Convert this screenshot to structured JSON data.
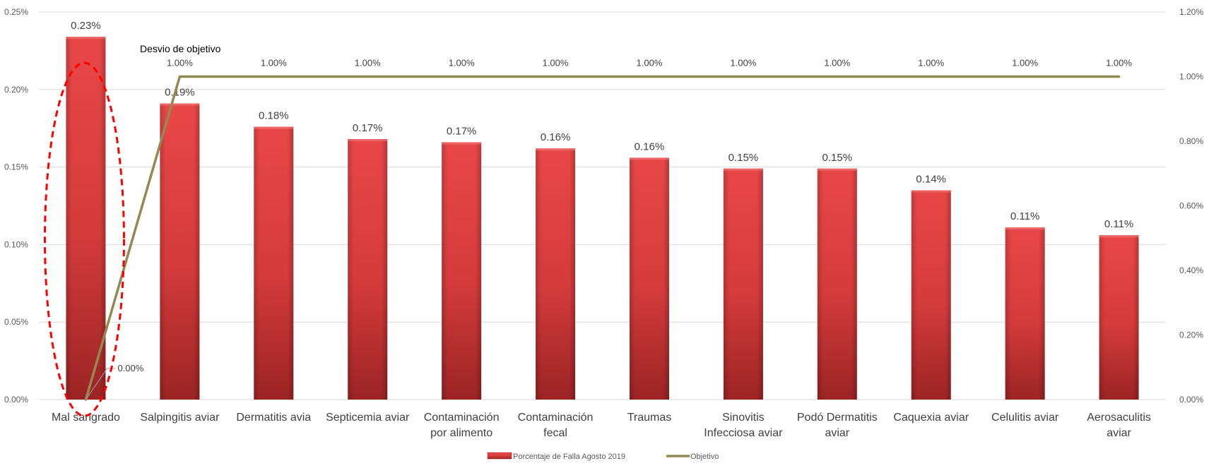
{
  "chart_data": {
    "type": "bar",
    "categories": [
      [
        "Mal sangrado"
      ],
      [
        "Salpingitis aviar"
      ],
      [
        "Dermatitis avia"
      ],
      [
        "Septicemia aviar"
      ],
      [
        "Contaminación",
        "por alimento"
      ],
      [
        "Contaminación",
        "fecal"
      ],
      [
        "Traumas"
      ],
      [
        "Sinovitis",
        "Infecciosa aviar"
      ],
      [
        "Podó Dermatitis",
        "aviar"
      ],
      [
        "Caquexia aviar"
      ],
      [
        "Celulitis aviar"
      ],
      [
        "Aerosaculitis",
        "aviar"
      ]
    ],
    "series": [
      {
        "name": "Porcentaje de Falla Agosto 2019",
        "type": "bar",
        "axis": "left",
        "values": [
          0.234,
          0.191,
          0.176,
          0.168,
          0.166,
          0.162,
          0.156,
          0.149,
          0.149,
          0.135,
          0.111,
          0.106
        ],
        "labels": [
          "0.23%",
          "0.19%",
          "0.18%",
          "0.17%",
          "0.17%",
          "0.16%",
          "0.16%",
          "0.15%",
          "0.15%",
          "0.14%",
          "0.11%",
          "0.11%"
        ],
        "color": "#d93d3d"
      },
      {
        "name": "Objetivo",
        "type": "line",
        "axis": "right",
        "values": [
          0.0,
          1.0,
          1.0,
          1.0,
          1.0,
          1.0,
          1.0,
          1.0,
          1.0,
          1.0,
          1.0,
          1.0
        ],
        "labels": [
          "0.00%",
          "1.00%",
          "1.00%",
          "1.00%",
          "1.00%",
          "1.00%",
          "1.00%",
          "1.00%",
          "1.00%",
          "1.00%",
          "1.00%",
          "1.00%"
        ],
        "color": "#938953"
      }
    ],
    "y_left": {
      "lim": [
        0,
        0.25
      ],
      "ticks": [
        0,
        0.05,
        0.1,
        0.15,
        0.2,
        0.25
      ],
      "tick_labels": [
        "0.00%",
        "0.05%",
        "0.10%",
        "0.15%",
        "0.20%",
        "0.25%"
      ]
    },
    "y_right": {
      "lim": [
        0,
        1.2
      ],
      "ticks": [
        0,
        0.2,
        0.4,
        0.6,
        0.8,
        1.0,
        1.2
      ],
      "tick_labels": [
        "0.00%",
        "0.20%",
        "0.40%",
        "0.60%",
        "0.80%",
        "1.00%",
        "1.20%"
      ]
    },
    "annotation": "Desvio de objetivo",
    "highlight_category_index": 0,
    "highlight_color": "#ff0000",
    "grid": true,
    "legend_position": "bottom",
    "title": ""
  }
}
